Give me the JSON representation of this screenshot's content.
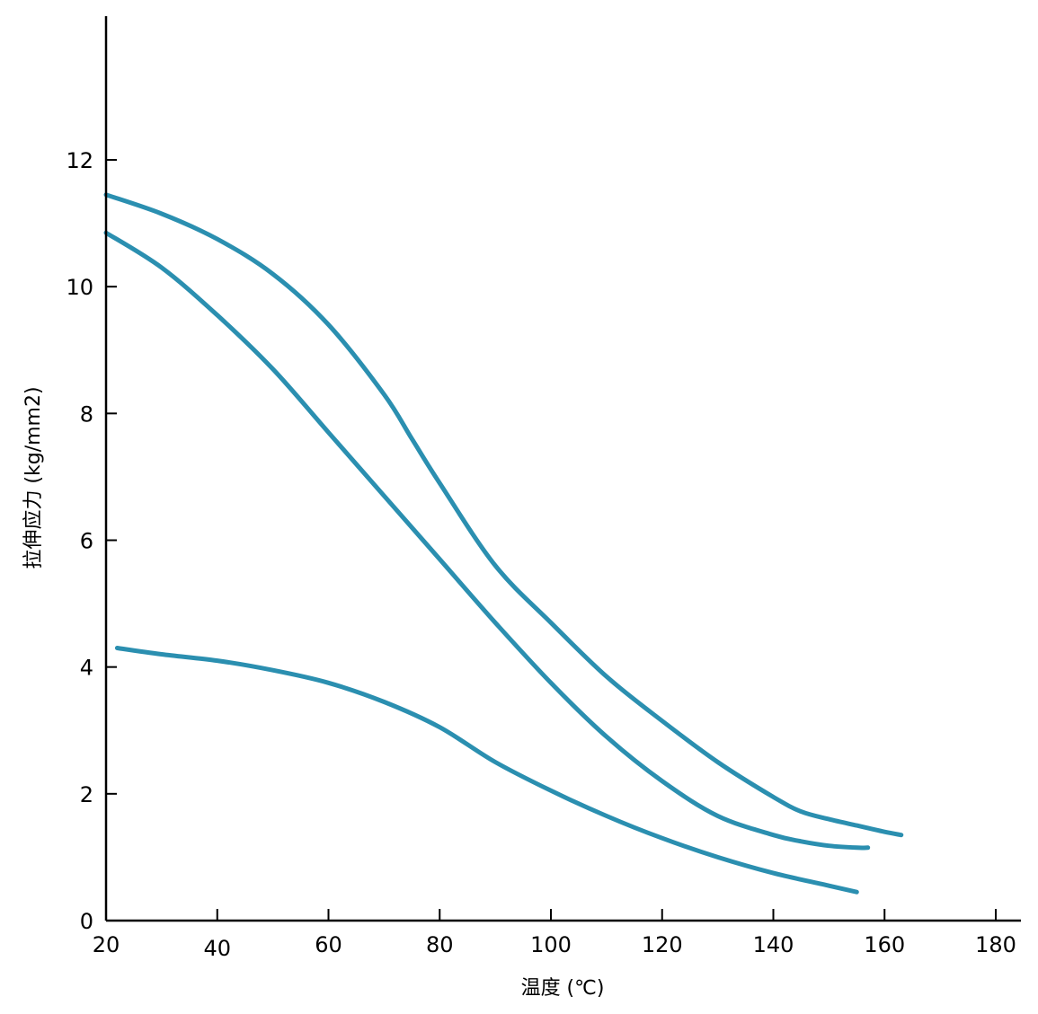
{
  "chart_data": {
    "type": "line",
    "title": "",
    "xlabel": "温度 (℃)",
    "ylabel": "拉伸应力 (kg/mm2)",
    "xlim": [
      20,
      180
    ],
    "ylim": [
      0,
      14
    ],
    "x_ticks": [
      20,
      40,
      60,
      80,
      100,
      120,
      140,
      160,
      180
    ],
    "x_tick_labels": [
      "20",
      "40",
      "60",
      "80",
      "100",
      "120",
      "140",
      "160",
      "180"
    ],
    "y_ticks": [
      0,
      2,
      4,
      6,
      8,
      10,
      12
    ],
    "y_tick_labels": [
      "0",
      "2",
      "4",
      "6",
      "8",
      "10",
      "12"
    ],
    "grid": false,
    "legend": "none",
    "line_color": "#2b8fb0",
    "series": [
      {
        "x": [
          20,
          30,
          40,
          50,
          60,
          70,
          75,
          80,
          90,
          100,
          110,
          120,
          130,
          140,
          145,
          150,
          155,
          160,
          163
        ],
        "y": [
          11.45,
          11.15,
          10.75,
          10.2,
          9.4,
          8.3,
          7.6,
          6.9,
          5.6,
          4.7,
          3.85,
          3.15,
          2.5,
          1.95,
          1.72,
          1.6,
          1.5,
          1.4,
          1.35
        ]
      },
      {
        "x": [
          20,
          30,
          40,
          50,
          60,
          70,
          80,
          90,
          100,
          110,
          120,
          130,
          140,
          145,
          150,
          155,
          157
        ],
        "y": [
          10.85,
          10.3,
          9.55,
          8.7,
          7.7,
          6.7,
          5.7,
          4.7,
          3.75,
          2.9,
          2.2,
          1.65,
          1.35,
          1.25,
          1.18,
          1.15,
          1.15
        ]
      },
      {
        "x": [
          22,
          30,
          40,
          50,
          60,
          70,
          80,
          90,
          100,
          110,
          120,
          130,
          140,
          150,
          155
        ],
        "y": [
          4.3,
          4.2,
          4.1,
          3.95,
          3.75,
          3.45,
          3.05,
          2.5,
          2.05,
          1.65,
          1.3,
          1.0,
          0.75,
          0.55,
          0.45
        ]
      }
    ]
  }
}
